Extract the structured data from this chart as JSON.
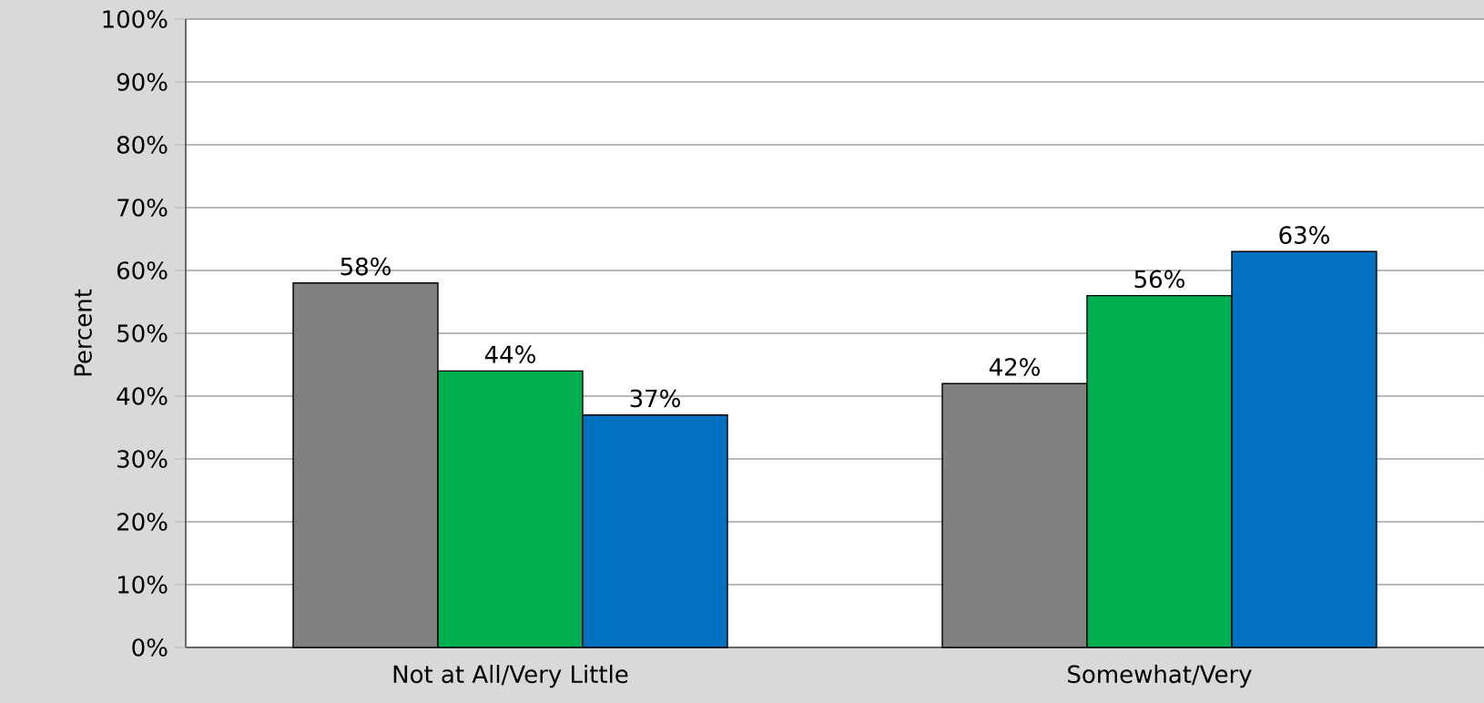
{
  "chart_data": {
    "type": "bar",
    "ylabel": "Percent",
    "categories": [
      "Not at All/Very Little",
      "Somewhat/Very"
    ],
    "series": [
      {
        "color": "#808080",
        "values": [
          58,
          42
        ],
        "value_labels": [
          "58%",
          "42%"
        ]
      },
      {
        "color": "#00b050",
        "values": [
          44,
          56
        ],
        "value_labels": [
          "44%",
          "56%"
        ]
      },
      {
        "color": "#0070c0",
        "values": [
          37,
          63
        ],
        "value_labels": [
          "37%",
          "63%"
        ]
      }
    ],
    "ylim": [
      0,
      100
    ],
    "yticks": [
      {
        "value": 0,
        "label": "0%"
      },
      {
        "value": 10,
        "label": "10%"
      },
      {
        "value": 20,
        "label": "20%"
      },
      {
        "value": 30,
        "label": "30%"
      },
      {
        "value": 40,
        "label": "40%"
      },
      {
        "value": 50,
        "label": "50%"
      },
      {
        "value": 60,
        "label": "60%"
      },
      {
        "value": 70,
        "label": "70%"
      },
      {
        "value": 80,
        "label": "80%"
      },
      {
        "value": 90,
        "label": "90%"
      },
      {
        "value": 100,
        "label": "100%"
      }
    ],
    "grid": "y"
  }
}
